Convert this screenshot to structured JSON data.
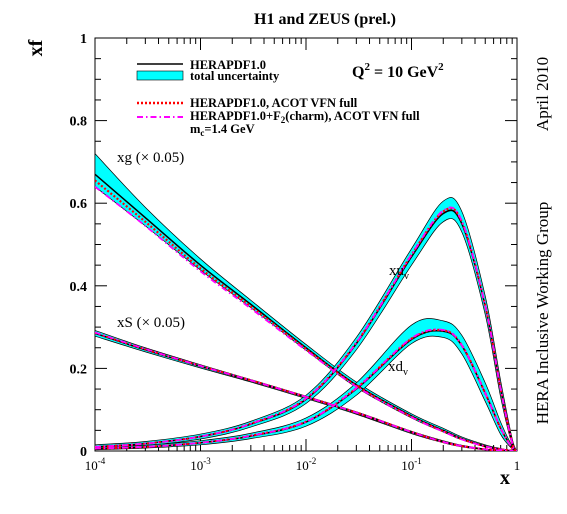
{
  "chart_data": {
    "type": "line",
    "title": "H1 and ZEUS (prel.)",
    "ylabel": "xf",
    "xlabel": "x",
    "x_scale": "log",
    "xlim": [
      0.0001,
      1
    ],
    "ylim": [
      0,
      1
    ],
    "grid": false,
    "y_ticks": [
      "0",
      "0.2",
      "0.4",
      "0.6",
      "0.8",
      "1"
    ],
    "x_ticks": [
      {
        "base": "10",
        "exp": "-4",
        "value": 0.0001
      },
      {
        "base": "10",
        "exp": "-3",
        "value": 0.001
      },
      {
        "base": "10",
        "exp": "-2",
        "value": 0.01
      },
      {
        "base": "10",
        "exp": "-1",
        "value": 0.1
      },
      {
        "base": "1",
        "exp": "",
        "value": 1
      }
    ],
    "scale_label": {
      "base": "Q",
      "sup": "2",
      "mid": " = 10 GeV",
      "sup2": "2"
    },
    "side_date": "April 2010",
    "side_group": "HERA Inclusive Working Group",
    "legend": {
      "placement": "top-left",
      "entries": [
        {
          "label": "HERAPDF1.0",
          "style": "solid",
          "color": "#000000"
        },
        {
          "label": "total uncertainty",
          "style": "band",
          "color": "#00ffff"
        },
        {
          "label": "HERAPDF1.0, ACOT VFN full",
          "style": "dotted",
          "color": "#ff0000"
        },
        {
          "label": "HERAPDF1.0+F",
          "sub": "2",
          "label2": "(charm), ACOT VFN full",
          "style": "dashdot",
          "color": "#ff00ff"
        }
      ],
      "note": {
        "pre": "m",
        "sub": "c",
        "post": "=1.4 GeV"
      }
    },
    "curve_labels": {
      "xg": "xg (× 0.05)",
      "xS": "xS (× 0.05)",
      "xuv": {
        "base": "xu",
        "sub": "v"
      },
      "xdv": {
        "base": "xd",
        "sub": "v"
      }
    },
    "x": [
      0.0001,
      0.0003,
      0.001,
      0.003,
      0.01,
      0.03,
      0.1,
      0.2,
      0.3,
      0.5,
      0.7,
      0.9,
      1.0
    ],
    "series": [
      {
        "key": "xg",
        "central": [
          0.67,
          0.565,
          0.45,
          0.355,
          0.25,
          0.16,
          0.085,
          0.05,
          0.03,
          0.012,
          0.004,
          0.0008,
          0.0
        ],
        "upper": [
          0.72,
          0.59,
          0.465,
          0.365,
          0.258,
          0.167,
          0.09,
          0.055,
          0.034,
          0.015,
          0.006,
          0.0012,
          0.0
        ],
        "lower": [
          0.64,
          0.545,
          0.438,
          0.347,
          0.244,
          0.154,
          0.08,
          0.046,
          0.027,
          0.01,
          0.003,
          0.0005,
          0.0
        ],
        "acot": [
          0.655,
          0.555,
          0.442,
          0.35,
          0.247,
          0.158,
          0.083,
          0.048,
          0.029,
          0.011,
          0.004,
          0.0007,
          0.0
        ],
        "charm": [
          0.64,
          0.545,
          0.435,
          0.345,
          0.244,
          0.156,
          0.082,
          0.047,
          0.028,
          0.011,
          0.004,
          0.0007,
          0.0
        ]
      },
      {
        "key": "xS",
        "central": [
          0.285,
          0.245,
          0.205,
          0.17,
          0.13,
          0.092,
          0.045,
          0.022,
          0.012,
          0.004,
          0.001,
          0.0002,
          0.0
        ],
        "upper": [
          0.292,
          0.25,
          0.209,
          0.173,
          0.133,
          0.095,
          0.048,
          0.025,
          0.014,
          0.005,
          0.0015,
          0.0003,
          0.0
        ],
        "lower": [
          0.278,
          0.24,
          0.201,
          0.167,
          0.127,
          0.089,
          0.042,
          0.02,
          0.01,
          0.003,
          0.0008,
          0.0001,
          0.0
        ],
        "acot": [
          0.286,
          0.246,
          0.206,
          0.171,
          0.131,
          0.093,
          0.046,
          0.022,
          0.012,
          0.004,
          0.001,
          0.0002,
          0.0
        ],
        "charm": [
          0.287,
          0.247,
          0.206,
          0.171,
          0.131,
          0.093,
          0.046,
          0.022,
          0.012,
          0.004,
          0.001,
          0.0002,
          0.0
        ]
      },
      {
        "key": "xuv",
        "central": [
          0.01,
          0.018,
          0.035,
          0.065,
          0.125,
          0.26,
          0.47,
          0.575,
          0.55,
          0.35,
          0.15,
          0.02,
          0.0
        ],
        "upper": [
          0.015,
          0.023,
          0.041,
          0.072,
          0.135,
          0.275,
          0.49,
          0.605,
          0.58,
          0.375,
          0.17,
          0.03,
          0.0
        ],
        "lower": [
          0.006,
          0.013,
          0.029,
          0.058,
          0.115,
          0.245,
          0.45,
          0.555,
          0.53,
          0.33,
          0.13,
          0.015,
          0.0
        ],
        "acot": [
          0.01,
          0.018,
          0.035,
          0.066,
          0.127,
          0.262,
          0.475,
          0.58,
          0.555,
          0.352,
          0.15,
          0.02,
          0.0
        ],
        "charm": [
          0.01,
          0.018,
          0.035,
          0.066,
          0.127,
          0.262,
          0.475,
          0.582,
          0.556,
          0.352,
          0.15,
          0.02,
          0.0
        ]
      },
      {
        "key": "xdv",
        "central": [
          0.006,
          0.01,
          0.02,
          0.036,
          0.07,
          0.15,
          0.27,
          0.29,
          0.255,
          0.14,
          0.055,
          0.008,
          0.0
        ],
        "upper": [
          0.01,
          0.014,
          0.025,
          0.043,
          0.08,
          0.165,
          0.305,
          0.315,
          0.28,
          0.165,
          0.07,
          0.012,
          0.0
        ],
        "lower": [
          0.003,
          0.007,
          0.015,
          0.03,
          0.06,
          0.135,
          0.26,
          0.275,
          0.235,
          0.12,
          0.04,
          0.005,
          0.0
        ],
        "acot": [
          0.006,
          0.01,
          0.02,
          0.037,
          0.071,
          0.152,
          0.272,
          0.292,
          0.256,
          0.14,
          0.055,
          0.008,
          0.0
        ],
        "charm": [
          0.006,
          0.01,
          0.02,
          0.037,
          0.071,
          0.152,
          0.273,
          0.293,
          0.256,
          0.14,
          0.055,
          0.008,
          0.0
        ]
      }
    ]
  }
}
